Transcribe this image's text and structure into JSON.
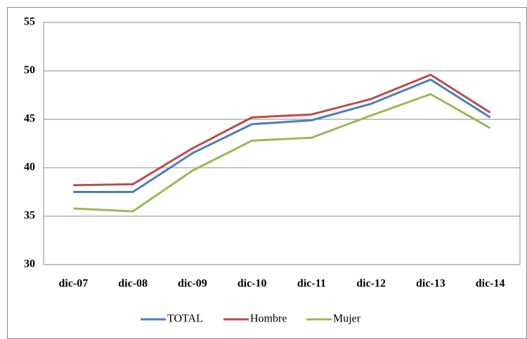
{
  "chart_data": {
    "type": "line",
    "categories": [
      "dic-07",
      "dic-08",
      "dic-09",
      "dic-10",
      "dic-11",
      "dic-12",
      "dic-13",
      "dic-14"
    ],
    "series": [
      {
        "name": "TOTAL",
        "color": "#4a7ebb",
        "values": [
          37.5,
          37.5,
          41.5,
          44.5,
          44.9,
          46.6,
          49.1,
          45.2
        ]
      },
      {
        "name": "Hombre",
        "color": "#be4b48",
        "values": [
          38.2,
          38.3,
          42.0,
          45.2,
          45.5,
          47.1,
          49.6,
          45.7
        ]
      },
      {
        "name": "Mujer",
        "color": "#98b954",
        "values": [
          35.8,
          35.5,
          39.7,
          42.8,
          43.1,
          45.4,
          47.6,
          44.1
        ]
      }
    ],
    "ylim": [
      30,
      55
    ],
    "yticks": [
      30,
      35,
      40,
      45,
      50,
      55
    ],
    "grid": true,
    "legend": "bottom"
  }
}
